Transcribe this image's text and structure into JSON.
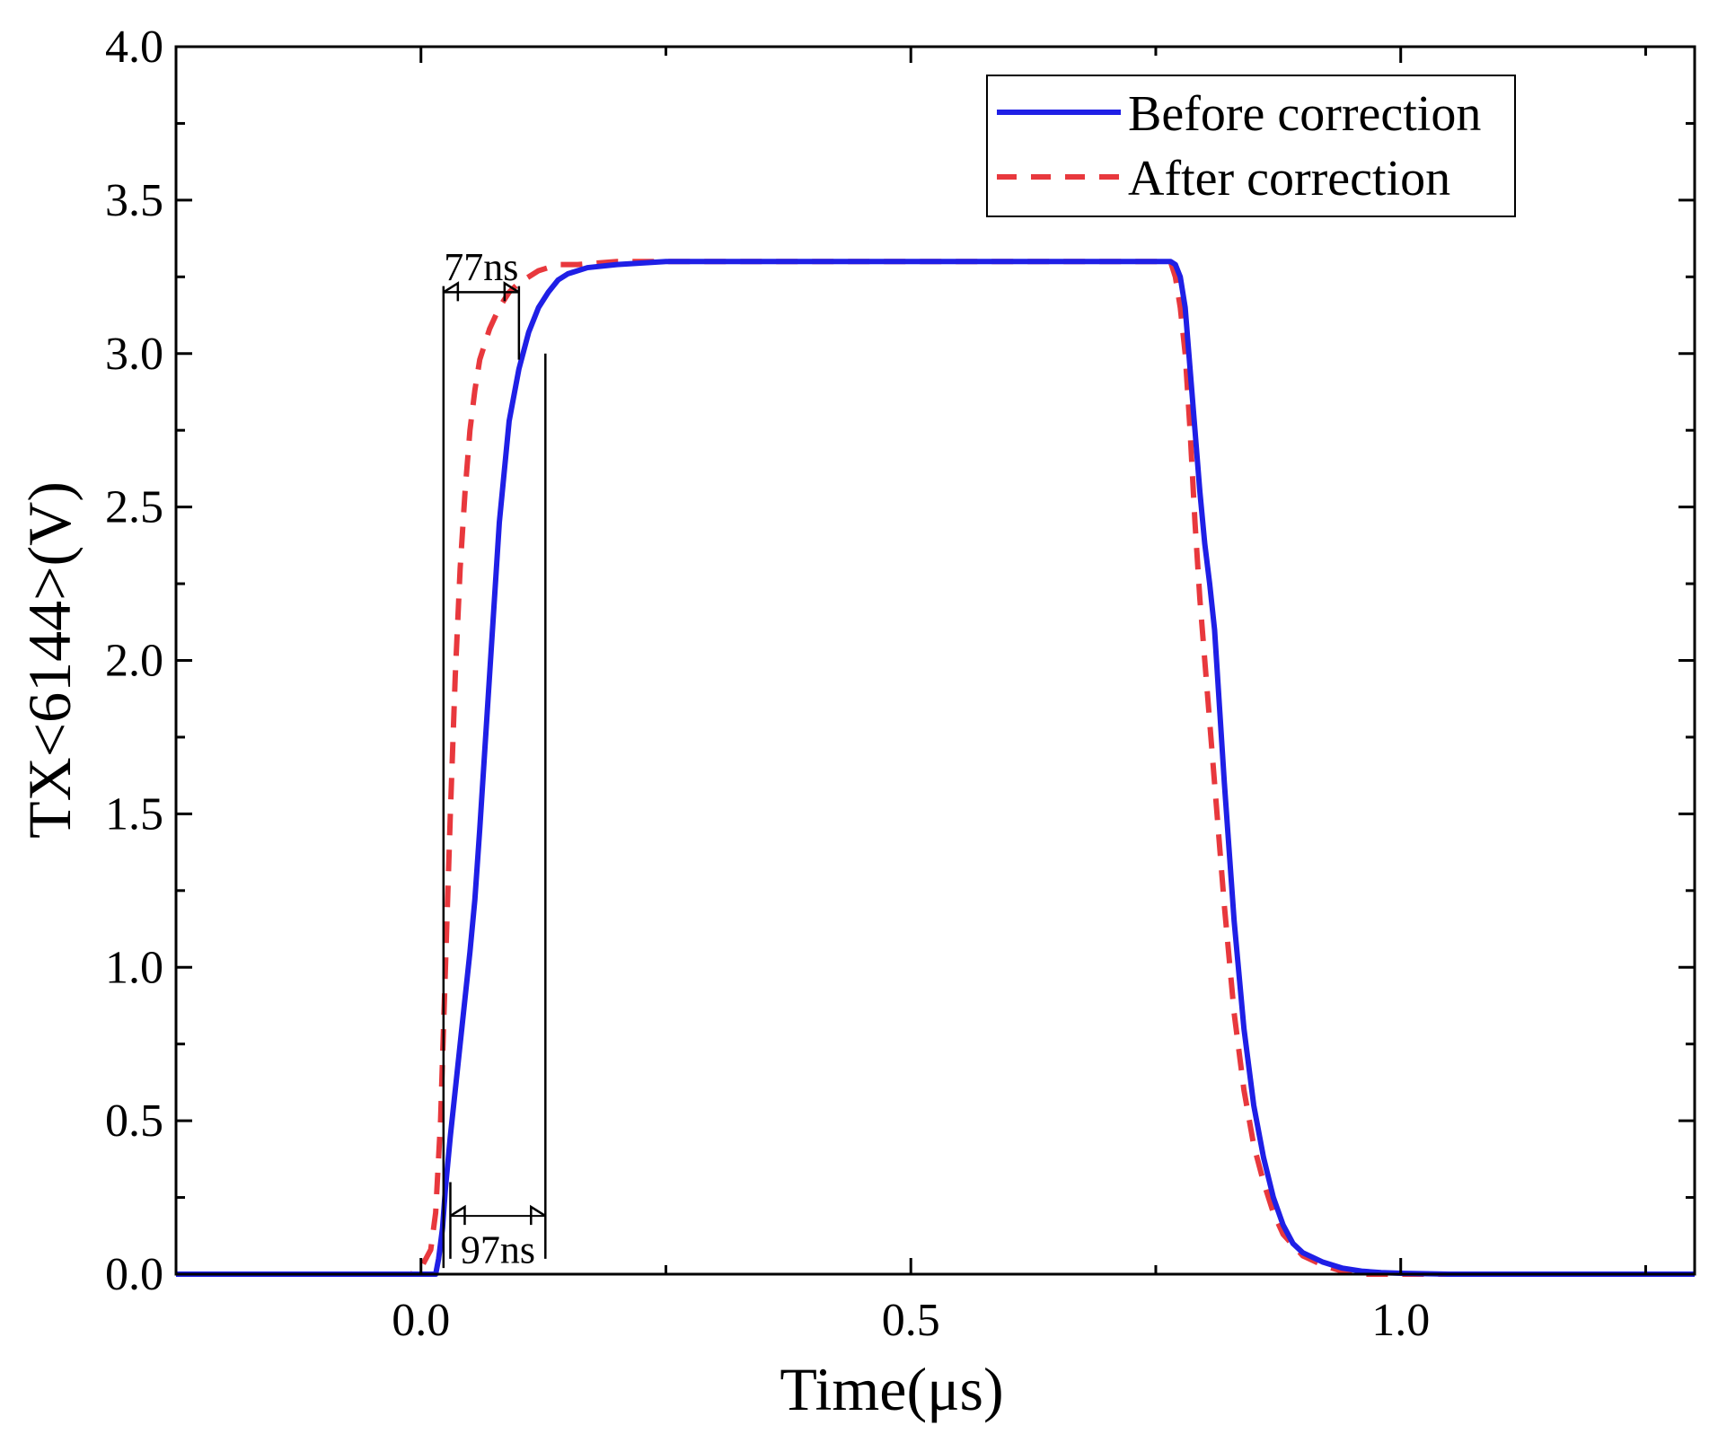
{
  "chart_data": {
    "type": "line",
    "title": "",
    "xlabel": "Time(μs)",
    "ylabel": "TX<6144>(V)",
    "xlim": [
      -0.25,
      1.3
    ],
    "ylim": [
      0.0,
      4.0
    ],
    "xticks": [
      0.0,
      0.5,
      1.0
    ],
    "xtick_labels": [
      "0.0",
      "0.5",
      "1.0"
    ],
    "yticks": [
      0.0,
      0.5,
      1.0,
      1.5,
      2.0,
      2.5,
      3.0,
      3.5,
      4.0
    ],
    "ytick_labels": [
      "0.0",
      "0.5",
      "1.0",
      "1.5",
      "2.0",
      "2.5",
      "3.0",
      "3.5",
      "4.0"
    ],
    "grid": false,
    "legend_position": "top-right",
    "series": [
      {
        "name": "Before correction",
        "color": "#1f1fe6",
        "style": "solid",
        "x": [
          -0.25,
          0.015,
          0.018,
          0.022,
          0.025,
          0.03,
          0.035,
          0.04,
          0.045,
          0.05,
          0.055,
          0.06,
          0.065,
          0.07,
          0.075,
          0.08,
          0.09,
          0.1,
          0.11,
          0.12,
          0.13,
          0.14,
          0.15,
          0.17,
          0.2,
          0.25,
          0.3,
          0.5,
          0.7,
          0.765,
          0.77,
          0.775,
          0.78,
          0.785,
          0.79,
          0.795,
          0.8,
          0.805,
          0.81,
          0.815,
          0.82,
          0.83,
          0.84,
          0.85,
          0.86,
          0.87,
          0.88,
          0.89,
          0.9,
          0.92,
          0.94,
          0.96,
          0.98,
          1.0,
          1.05,
          1.3
        ],
        "y": [
          0.0,
          0.0,
          0.05,
          0.15,
          0.28,
          0.45,
          0.6,
          0.75,
          0.9,
          1.05,
          1.22,
          1.45,
          1.7,
          1.95,
          2.2,
          2.45,
          2.78,
          2.95,
          3.07,
          3.15,
          3.2,
          3.24,
          3.26,
          3.28,
          3.29,
          3.3,
          3.3,
          3.3,
          3.3,
          3.3,
          3.29,
          3.25,
          3.15,
          2.95,
          2.75,
          2.55,
          2.38,
          2.25,
          2.1,
          1.85,
          1.6,
          1.15,
          0.8,
          0.55,
          0.38,
          0.25,
          0.16,
          0.1,
          0.07,
          0.04,
          0.02,
          0.01,
          0.005,
          0.003,
          0.0,
          0.0
        ]
      },
      {
        "name": "After correction",
        "color": "#e8383d",
        "style": "dashed",
        "x": [
          -0.25,
          -0.01,
          0.0,
          0.01,
          0.015,
          0.02,
          0.025,
          0.03,
          0.035,
          0.04,
          0.045,
          0.05,
          0.055,
          0.06,
          0.07,
          0.08,
          0.09,
          0.1,
          0.11,
          0.12,
          0.13,
          0.14,
          0.16,
          0.2,
          0.25,
          0.3,
          0.5,
          0.7,
          0.765,
          0.77,
          0.775,
          0.78,
          0.785,
          0.79,
          0.795,
          0.8,
          0.81,
          0.82,
          0.83,
          0.84,
          0.85,
          0.86,
          0.87,
          0.88,
          0.9,
          0.92,
          0.94,
          0.96,
          1.0,
          1.3
        ],
        "y": [
          0.0,
          0.0,
          0.02,
          0.08,
          0.2,
          0.5,
          1.0,
          1.5,
          1.95,
          2.3,
          2.55,
          2.75,
          2.88,
          2.98,
          3.08,
          3.15,
          3.2,
          3.23,
          3.25,
          3.27,
          3.28,
          3.29,
          3.29,
          3.3,
          3.3,
          3.3,
          3.3,
          3.3,
          3.3,
          3.25,
          3.15,
          3.0,
          2.75,
          2.45,
          2.2,
          2.0,
          1.6,
          1.2,
          0.85,
          0.6,
          0.42,
          0.3,
          0.2,
          0.13,
          0.06,
          0.03,
          0.01,
          0.0,
          0.0,
          0.0
        ]
      }
    ],
    "annotations": [
      {
        "text": "77ns",
        "from_x": 0.023,
        "to_x": 0.1,
        "arrow_y": 3.2,
        "label_x": 0.06,
        "label_y": 3.28,
        "vline_top_y": 3.22,
        "vline_bottom_y": 3.2,
        "right_vline_bottom_y": 2.98
      },
      {
        "text": "97ns",
        "from_x": 0.03,
        "to_x": 0.127,
        "arrow_y": 0.19,
        "label_x": 0.08,
        "label_y": 0.03,
        "vline_top_y": 3.0,
        "vline_bottom_y": 0.05,
        "left_vline_top_y": 0.3
      }
    ]
  }
}
